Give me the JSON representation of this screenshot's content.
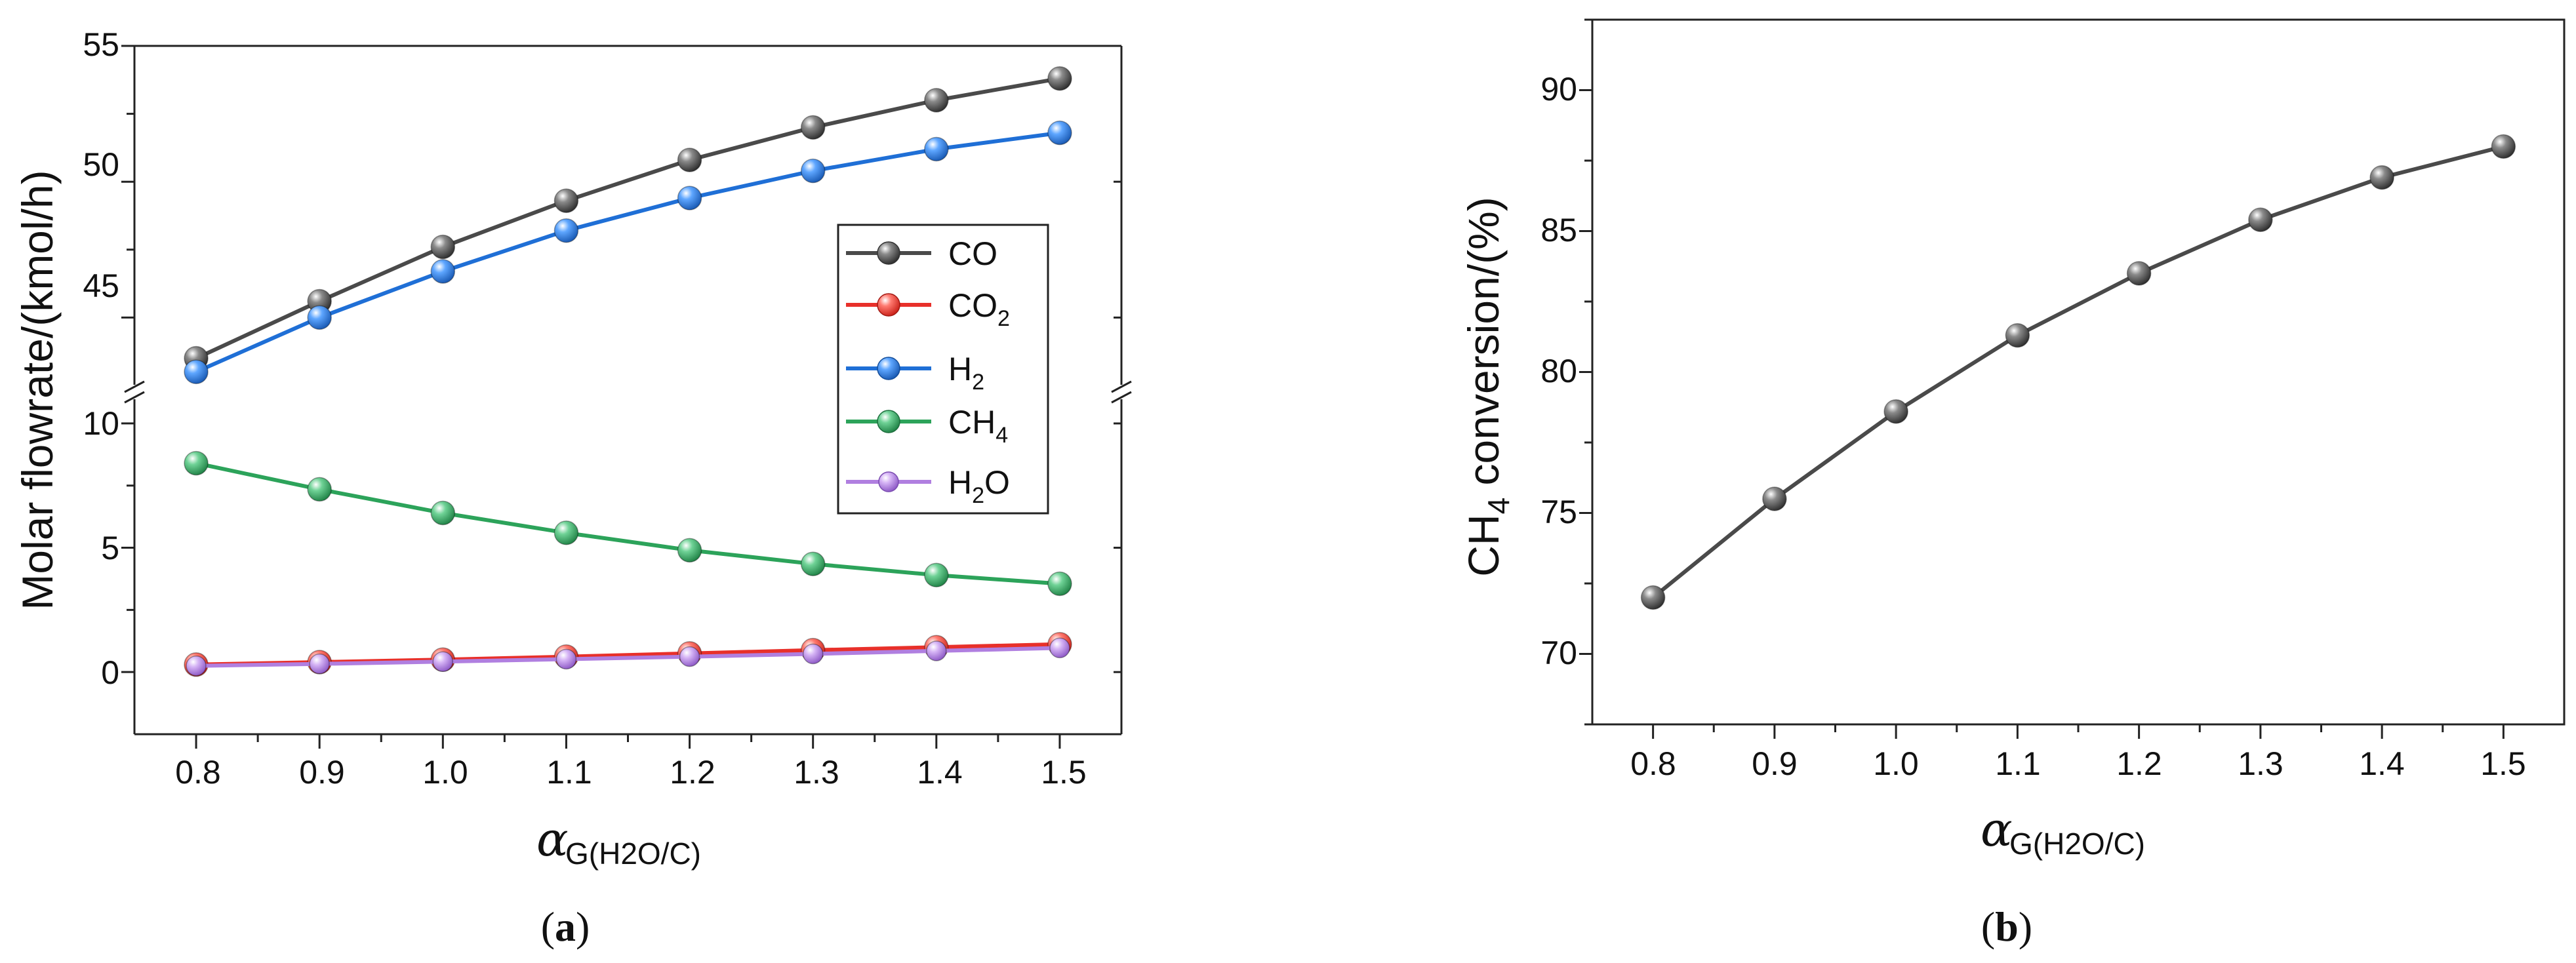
{
  "chart_data": [
    {
      "type": "line",
      "panel_label": "a",
      "xlabel": "α",
      "xlabel_sub": "G(H2O/C)",
      "ylabel": "Molar flowrate/(kmol/h)",
      "x": [
        0.8,
        0.9,
        1.0,
        1.1,
        1.2,
        1.3,
        1.4,
        1.5
      ],
      "x_ticks": [
        "0.8",
        "0.9",
        "1.0",
        "1.1",
        "1.2",
        "1.3",
        "1.4",
        "1.5"
      ],
      "xlim": [
        0.75,
        1.55
      ],
      "y_break": true,
      "ylim_lower": [
        -2.5,
        11
      ],
      "ylim_upper": [
        42.5,
        55
      ],
      "y_ticks_lower": [
        "0",
        "5",
        "10"
      ],
      "y_ticks_upper": [
        "45",
        "50",
        "55"
      ],
      "legend_position": "center-right",
      "series": [
        {
          "name": "CO",
          "label_main": "CO",
          "label_sub": "",
          "color": "#4a4a4a",
          "values": [
            43.5,
            45.6,
            47.6,
            49.3,
            50.8,
            52.0,
            53.0,
            53.8
          ]
        },
        {
          "name": "CO2",
          "label_main": "CO",
          "label_sub": "2",
          "color": "#e8302a",
          "values": [
            0.3,
            0.4,
            0.5,
            0.62,
            0.75,
            0.88,
            1.0,
            1.12
          ]
        },
        {
          "name": "H2",
          "label_main": "H",
          "label_sub": "2",
          "color": "#1f6fd6",
          "values": [
            43.0,
            45.0,
            46.7,
            48.2,
            49.4,
            50.4,
            51.2,
            51.8
          ]
        },
        {
          "name": "CH4",
          "label_main": "CH",
          "label_sub": "4",
          "color": "#2ca35a",
          "values": [
            8.4,
            7.35,
            6.4,
            5.6,
            4.9,
            4.35,
            3.9,
            3.55
          ]
        },
        {
          "name": "H2O",
          "label_main": "H",
          "label_sub": "2",
          "label_tail": "O",
          "color": "#b07fe0",
          "values": [
            0.25,
            0.33,
            0.42,
            0.52,
            0.62,
            0.73,
            0.85,
            0.97
          ]
        }
      ]
    },
    {
      "type": "line",
      "panel_label": "b",
      "xlabel": "α",
      "xlabel_sub": "G(H2O/C)",
      "ylabel_main": "CH",
      "ylabel_sub": "4",
      "ylabel_tail": " conversion/(%)",
      "x": [
        0.8,
        0.9,
        1.0,
        1.1,
        1.2,
        1.3,
        1.4,
        1.5
      ],
      "x_ticks": [
        "0.8",
        "0.9",
        "1.0",
        "1.1",
        "1.2",
        "1.3",
        "1.4",
        "1.5"
      ],
      "xlim": [
        0.75,
        1.55
      ],
      "ylim": [
        67.5,
        92.5
      ],
      "y_ticks": [
        "70",
        "75",
        "80",
        "85",
        "90"
      ],
      "series": [
        {
          "name": "CH4 conversion",
          "color": "#4a4a4a",
          "values": [
            72.0,
            75.5,
            78.6,
            81.3,
            83.5,
            85.4,
            86.9,
            88.0
          ]
        }
      ]
    }
  ]
}
